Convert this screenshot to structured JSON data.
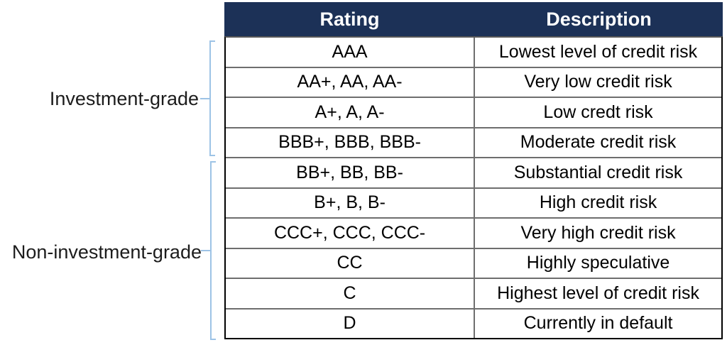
{
  "groups": {
    "investment_grade": {
      "label": "Investment-grade"
    },
    "non_investment_grade": {
      "label": "Non-investment-grade"
    }
  },
  "table": {
    "headers": {
      "rating": "Rating",
      "description": "Description"
    },
    "rows": [
      {
        "rating": "AAA",
        "description": "Lowest level of credit risk"
      },
      {
        "rating": "AA+, AA, AA-",
        "description": "Very low credit risk"
      },
      {
        "rating": "A+, A, A-",
        "description": "Low credt risk"
      },
      {
        "rating": "BBB+, BBB, BBB-",
        "description": "Moderate credit risk"
      },
      {
        "rating": "BB+, BB, BB-",
        "description": "Substantial credit risk"
      },
      {
        "rating": "B+, B, B-",
        "description": "High credit risk"
      },
      {
        "rating": "CCC+, CCC, CCC-",
        "description": "Very high credit risk"
      },
      {
        "rating": "CC",
        "description": "Highly speculative"
      },
      {
        "rating": "C",
        "description": "Highest level of credit risk"
      },
      {
        "rating": "D",
        "description": "Currently in default"
      }
    ],
    "group_spans": {
      "investment_grade_rows": [
        0,
        3
      ],
      "non_investment_grade_rows": [
        4,
        9
      ]
    }
  },
  "colors": {
    "header_background": "#1C3157",
    "header_text": "#FFFFFF",
    "bracket_blue": "#9DC3E6",
    "outer_border": "#000000",
    "inner_border": "#6E6E6E",
    "body_text": "#000000",
    "page_background": "#FFFFFF"
  }
}
